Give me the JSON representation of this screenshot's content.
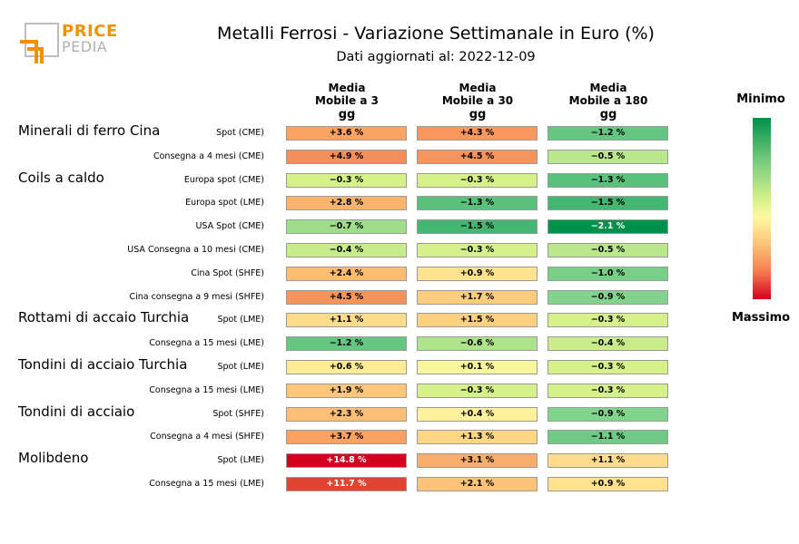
{
  "title": "Metalli Ferrosi - Variazione Settimanale in Euro (%)",
  "subtitle": "Dati aggiornati al: 2022-12-09",
  "logo": {
    "line1": "PRICE",
    "line2": "PEDIA"
  },
  "legend": {
    "top": "Minimo",
    "bottom": "Massimo"
  },
  "columns": [
    {
      "l1": "Media",
      "l2": "Mobile a 3",
      "l3": "gg"
    },
    {
      "l1": "Media",
      "l2": "Mobile a 30",
      "l3": "gg"
    },
    {
      "l1": "Media",
      "l2": "Mobile a 180",
      "l3": "gg"
    }
  ],
  "chart_data": {
    "type": "table",
    "title": "Metalli Ferrosi - Variazione Settimanale in Euro (%)",
    "columns": [
      "Media Mobile a 3 gg",
      "Media Mobile a 30 gg",
      "Media Mobile a 180 gg"
    ],
    "groups": [
      {
        "name": "Minerali di ferro Cina",
        "row": 0
      },
      {
        "name": "Coils a caldo",
        "row": 2
      },
      {
        "name": "Rottami di accaio Turchia",
        "row": 8
      },
      {
        "name": "Tondini di acciaio Turchia",
        "row": 10
      },
      {
        "name": "Tondini di acciaio",
        "row": 12
      },
      {
        "name": "Molibdeno",
        "row": 14
      }
    ],
    "rows": [
      {
        "label": "Spot (CME)",
        "values": [
          3.6,
          4.3,
          -1.2
        ],
        "text": [
          "+3.6 %",
          "+4.3 %",
          "−1.2 %"
        ]
      },
      {
        "label": "Consegna a 4 mesi (CME)",
        "values": [
          4.9,
          4.5,
          -0.5
        ],
        "text": [
          "+4.9 %",
          "+4.5 %",
          "−0.5 %"
        ]
      },
      {
        "label": "Europa spot (CME)",
        "values": [
          -0.3,
          -0.3,
          -1.3
        ],
        "text": [
          "−0.3 %",
          "−0.3 %",
          "−1.3 %"
        ]
      },
      {
        "label": "Europa spot (LME)",
        "values": [
          2.8,
          -1.3,
          -1.5
        ],
        "text": [
          "+2.8 %",
          "−1.3 %",
          "−1.5 %"
        ]
      },
      {
        "label": "USA Spot (CME)",
        "values": [
          -0.7,
          -1.5,
          -2.1
        ],
        "text": [
          "−0.7 %",
          "−1.5 %",
          "−2.1 %"
        ]
      },
      {
        "label": "USA Consegna a 10 mesi (CME)",
        "values": [
          -0.4,
          -0.3,
          -0.5
        ],
        "text": [
          "−0.4 %",
          "−0.3 %",
          "−0.5 %"
        ]
      },
      {
        "label": "Cina Spot (SHFE)",
        "values": [
          2.4,
          0.9,
          -1.0
        ],
        "text": [
          "+2.4 %",
          "+0.9 %",
          "−1.0 %"
        ]
      },
      {
        "label": "Cina consegna a 9 mesi (SHFE)",
        "values": [
          4.5,
          1.7,
          -0.9
        ],
        "text": [
          "+4.5 %",
          "+1.7 %",
          "−0.9 %"
        ]
      },
      {
        "label": "Spot (LME)",
        "values": [
          1.1,
          1.5,
          -0.3
        ],
        "text": [
          "+1.1 %",
          "+1.5 %",
          "−0.3 %"
        ]
      },
      {
        "label": "Consegna a 15 mesi (LME)",
        "values": [
          -1.2,
          -0.6,
          -0.4
        ],
        "text": [
          "−1.2 %",
          "−0.6 %",
          "−0.4 %"
        ]
      },
      {
        "label": "Spot (LME)",
        "values": [
          0.6,
          0.1,
          -0.3
        ],
        "text": [
          "+0.6 %",
          "+0.1 %",
          "−0.3 %"
        ]
      },
      {
        "label": "Consegna a 15 mesi (LME)",
        "values": [
          1.9,
          -0.3,
          -0.3
        ],
        "text": [
          "+1.9 %",
          "−0.3 %",
          "−0.3 %"
        ]
      },
      {
        "label": "Spot (SHFE)",
        "values": [
          2.3,
          0.4,
          -0.9
        ],
        "text": [
          "+2.3 %",
          "+0.4 %",
          "−0.9 %"
        ]
      },
      {
        "label": "Consegna a 4 mesi (SHFE)",
        "values": [
          3.7,
          1.3,
          -1.1
        ],
        "text": [
          "+3.7 %",
          "+1.3 %",
          "−1.1 %"
        ]
      },
      {
        "label": "Spot (LME)",
        "values": [
          14.8,
          3.1,
          1.1
        ],
        "text": [
          "+14.8 %",
          "+3.1 %",
          "+1.1 %"
        ]
      },
      {
        "label": "Consegna a 15 mesi (LME)",
        "values": [
          11.7,
          2.1,
          0.9
        ],
        "text": [
          "+11.7 %",
          "+2.1 %",
          "+0.9 %"
        ]
      }
    ],
    "colorscale": {
      "min_color": "#00904a",
      "max_color": "#d2001f",
      "legend_placement": "right"
    }
  }
}
